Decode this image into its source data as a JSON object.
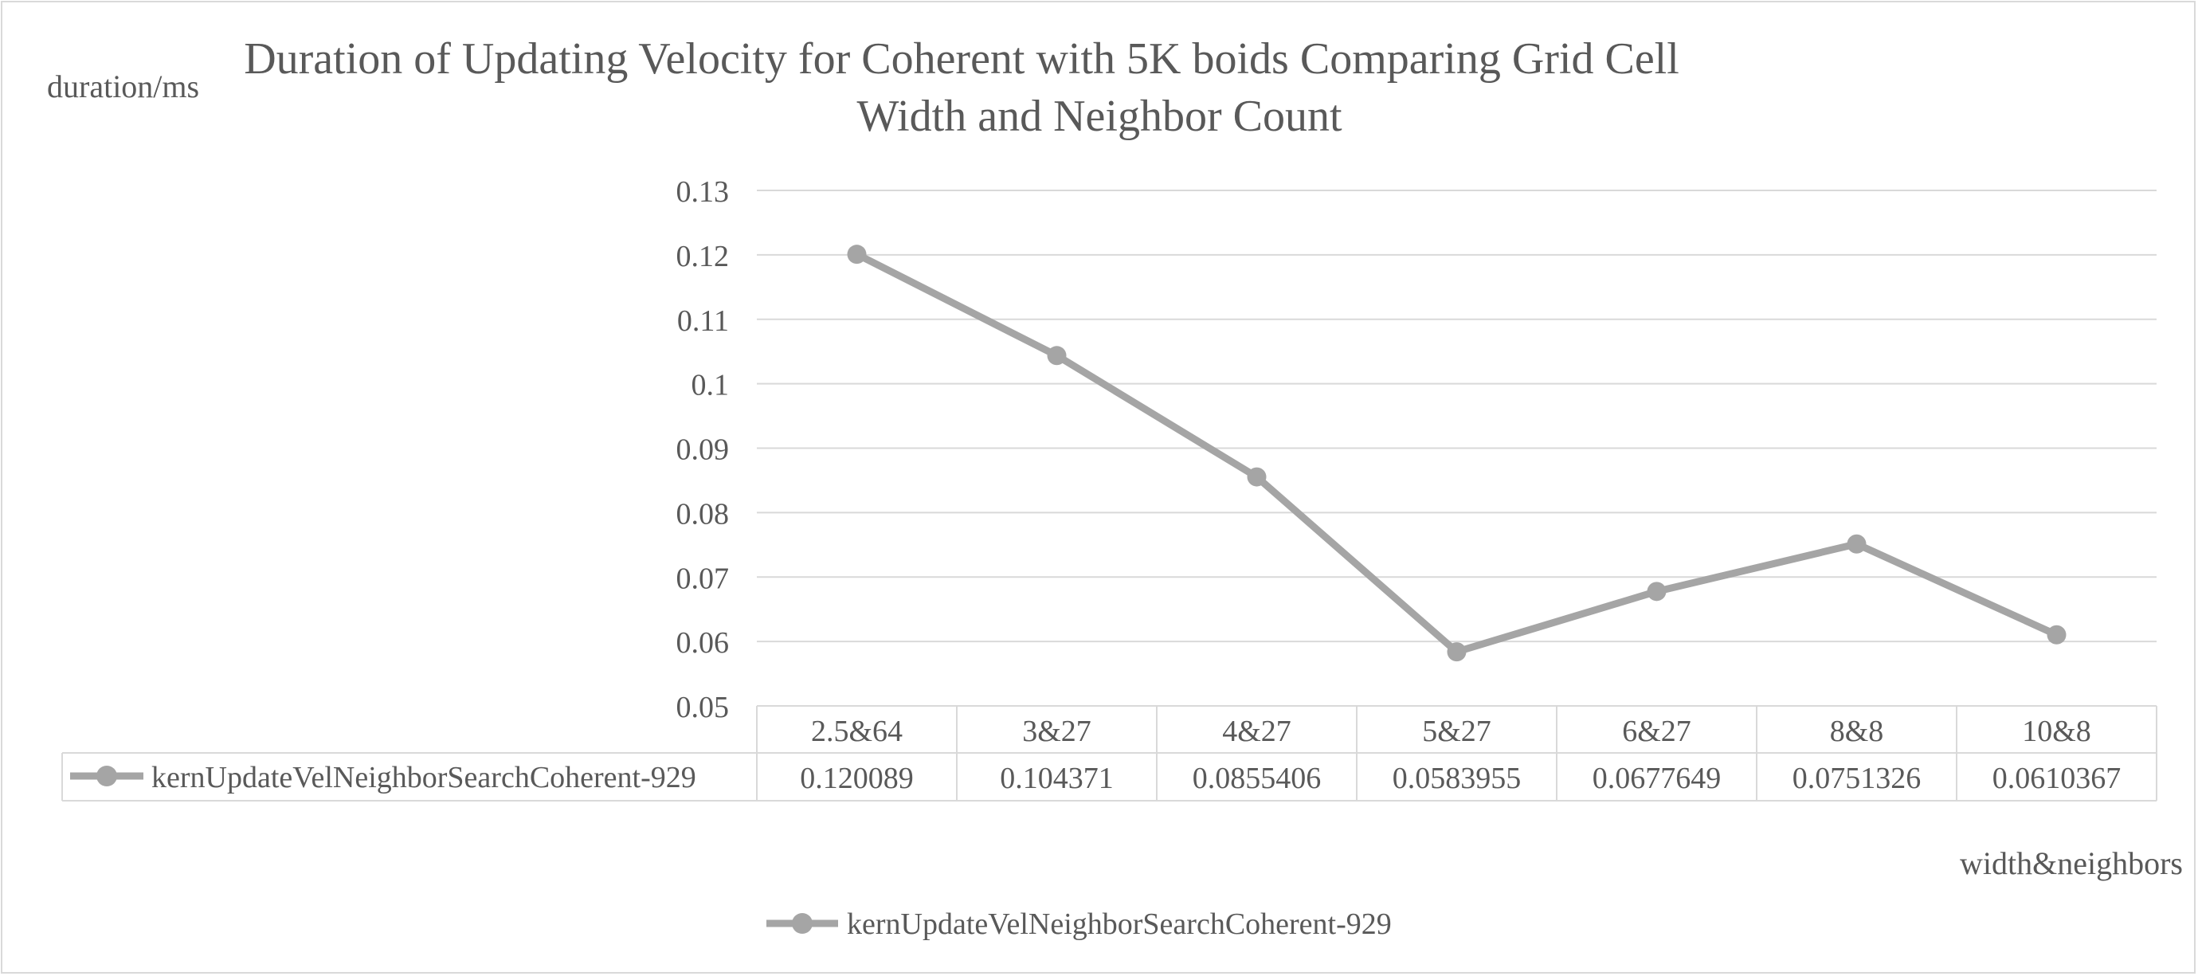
{
  "chart_data": {
    "type": "line",
    "title_lines": [
      "Duration of Updating Velocity for Coherent with 5K boids Comparing Grid Cell",
      "Width and Neighbor Count"
    ],
    "ylabel": "duration/ms",
    "xlabel": "width&neighbors",
    "categories": [
      "2.5&64",
      "3&27",
      "4&27",
      "5&27",
      "6&27",
      "8&8",
      "10&8"
    ],
    "ylim": [
      0.05,
      0.13
    ],
    "yticks": [
      "0.13",
      "0.12",
      "0.11",
      "0.1",
      "0.09",
      "0.08",
      "0.07",
      "0.06",
      "0.05"
    ],
    "series": [
      {
        "name": "kernUpdateVelNeighborSearchCoherent-929",
        "values": [
          0.120089,
          0.104371,
          0.0855406,
          0.0583955,
          0.0677649,
          0.0751326,
          0.0610367
        ],
        "value_labels": [
          "0.120089",
          "0.104371",
          "0.0855406",
          "0.0583955",
          "0.0677649",
          "0.0751326",
          "0.0610367"
        ],
        "color": "#a5a5a5"
      }
    ],
    "grid": true,
    "data_table": true,
    "legend_position": "bottom"
  }
}
